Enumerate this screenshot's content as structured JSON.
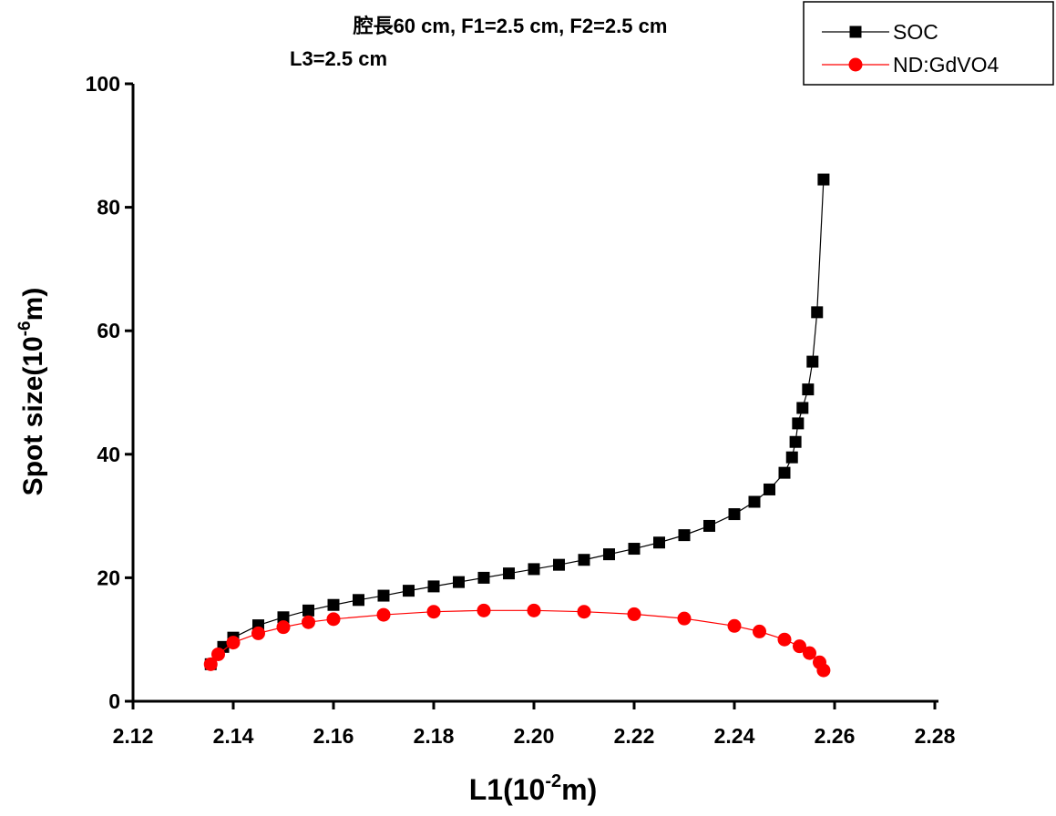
{
  "chart_data": {
    "type": "line",
    "title": "腔長60 cm, F1=2.5 cm, F2=2.5 cm",
    "subtitle": "L3=2.5 cm",
    "x_label": {
      "text": "L1(10",
      "sup": "-2",
      "end": "m)"
    },
    "y_label": {
      "text": "Spot size(10",
      "sup": "-6",
      "end": "m)"
    },
    "xlim": [
      2.12,
      2.28
    ],
    "xticks": [
      2.12,
      2.14,
      2.16,
      2.18,
      {
        "value": 2.2,
        "label": "2.20"
      },
      2.22,
      2.24,
      2.26,
      2.28
    ],
    "ylim": [
      0,
      100
    ],
    "yticks": [
      0,
      20,
      40,
      60,
      80,
      100
    ],
    "legend": "top-right",
    "series": [
      {
        "name": "SOC",
        "color": "#000000",
        "marker": "square",
        "x": [
          2.1355,
          2.138,
          2.14,
          2.145,
          2.15,
          2.155,
          2.16,
          2.165,
          2.17,
          2.175,
          2.18,
          2.185,
          2.19,
          2.195,
          2.2,
          2.205,
          2.21,
          2.215,
          2.22,
          2.225,
          2.23,
          2.235,
          2.24,
          2.244,
          2.247,
          2.25,
          2.2515,
          2.2522,
          2.2527,
          2.2536,
          2.2547,
          2.2556,
          2.2565,
          2.2578
        ],
        "values": [
          6,
          8.8,
          10.3,
          12.3,
          13.6,
          14.7,
          15.6,
          16.4,
          17.1,
          17.9,
          18.6,
          19.3,
          20,
          20.7,
          21.4,
          22.1,
          22.9,
          23.8,
          24.7,
          25.7,
          26.9,
          28.4,
          30.3,
          32.3,
          34.3,
          37,
          39.5,
          42,
          45,
          47.5,
          50.5,
          55,
          63,
          84.5
        ]
      },
      {
        "name": "ND:GdVO4",
        "color": "#ff0000",
        "marker": "circle",
        "x": [
          2.1355,
          2.137,
          2.14,
          2.145,
          2.15,
          2.155,
          2.16,
          2.17,
          2.18,
          2.19,
          2.2,
          2.21,
          2.22,
          2.23,
          2.24,
          2.245,
          2.25,
          2.253,
          2.255,
          2.257,
          2.2578
        ],
        "values": [
          6,
          7.6,
          9.5,
          11,
          12,
          12.8,
          13.3,
          14,
          14.5,
          14.7,
          14.7,
          14.5,
          14.1,
          13.4,
          12.2,
          11.3,
          10,
          8.9,
          7.8,
          6.3,
          5
        ]
      }
    ]
  }
}
